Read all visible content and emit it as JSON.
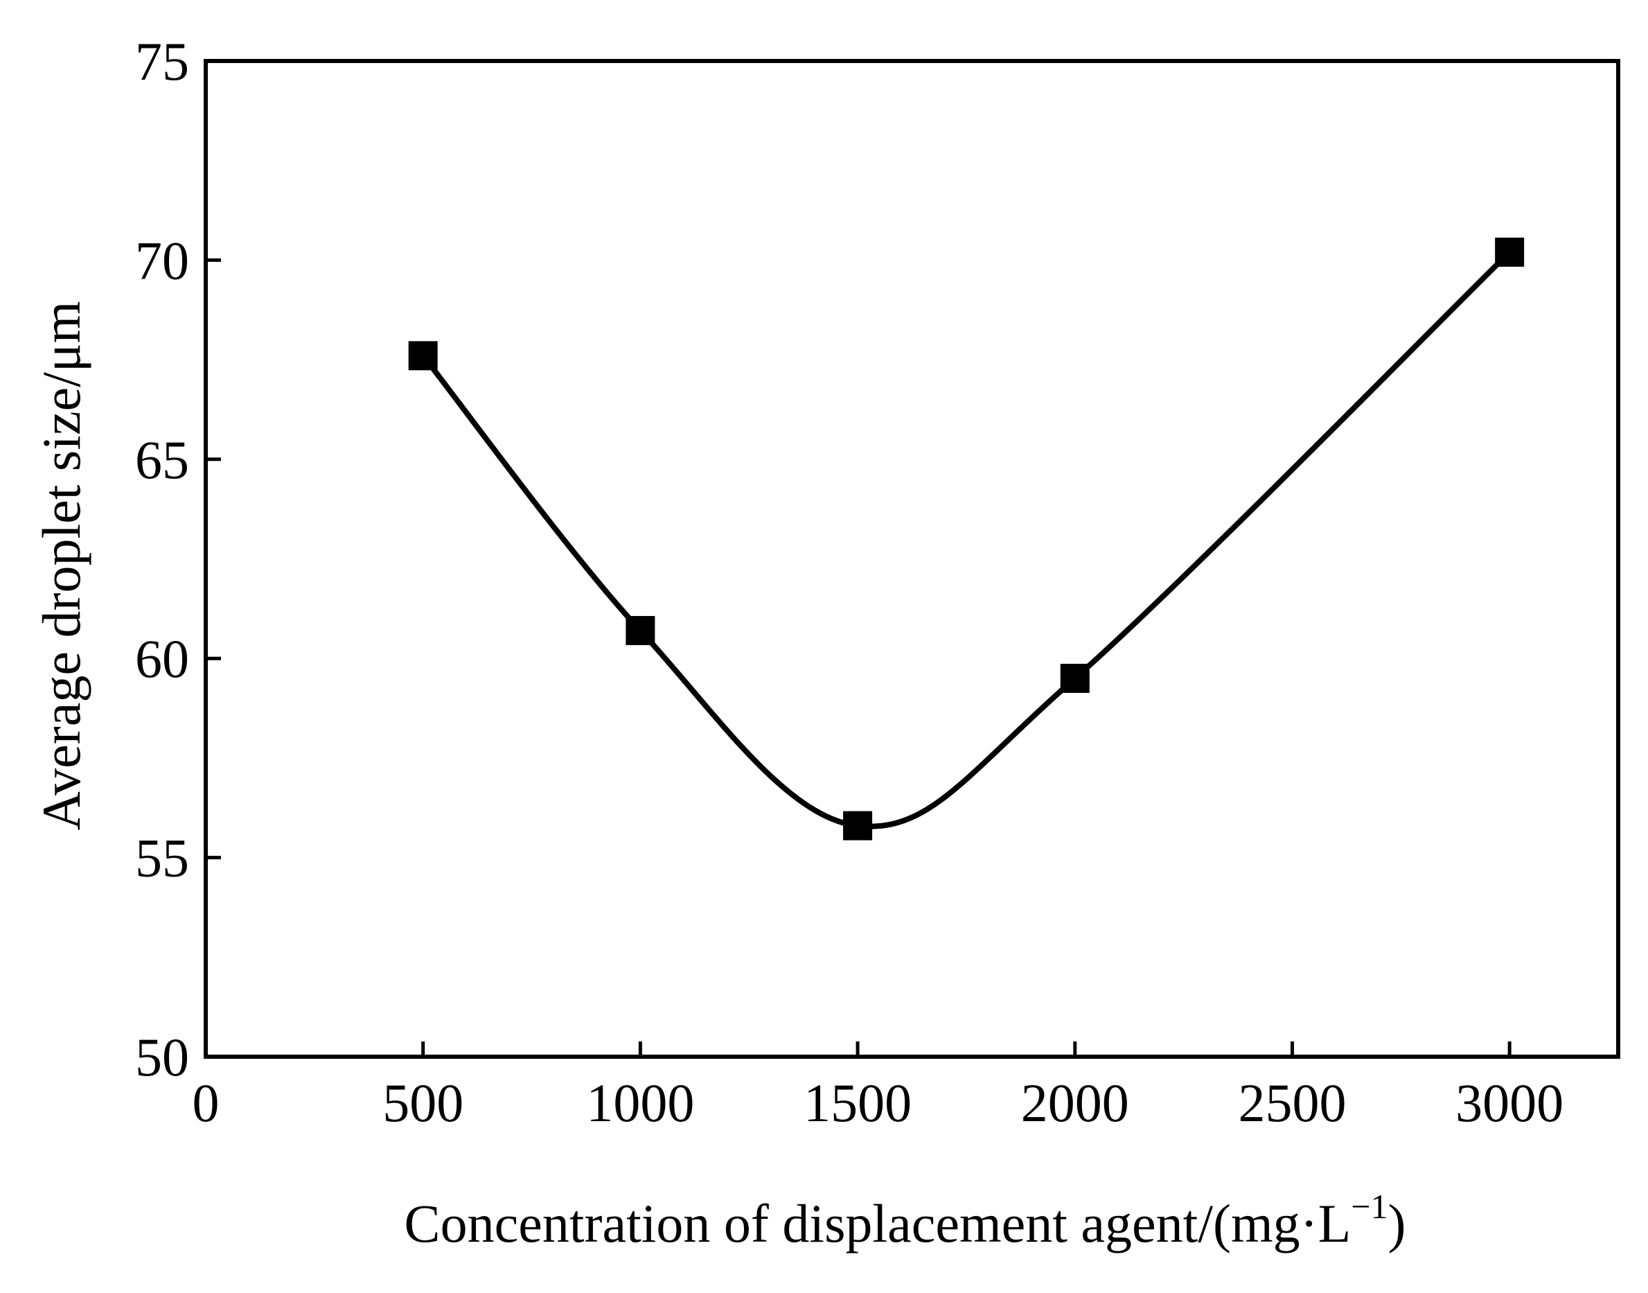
{
  "chart_data": {
    "type": "line",
    "title": "",
    "xlabel": "Concentration of displacement agent/(mg·L",
    "xlabel_superscript": "−1",
    "xlabel_close": ")",
    "ylabel": "Average droplet size/μm",
    "xlim": [
      0,
      3250
    ],
    "ylim": [
      50,
      75
    ],
    "xticks": [
      0,
      500,
      1000,
      1500,
      2000,
      2500,
      3000
    ],
    "yticks": [
      50,
      55,
      60,
      65,
      70,
      75
    ],
    "grid": false,
    "legend": "none",
    "series": [
      {
        "marker": "square",
        "color": "#000000",
        "line": "smooth",
        "x": [
          500,
          1000,
          1500,
          2000,
          3000
        ],
        "y": [
          67.6,
          60.7,
          55.8,
          59.5,
          70.2
        ]
      }
    ]
  }
}
